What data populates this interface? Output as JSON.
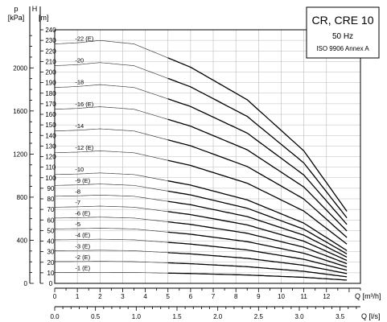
{
  "chart_data": {
    "type": "line",
    "title": "CR, CRE 10",
    "subtitle_freq": "50 Hz",
    "subtitle_standard": "ISO 9906 Annex A",
    "legend_position": "top-right",
    "grid": true,
    "x_axis": {
      "label": "Q [m³/h]",
      "min": 0,
      "max": 13.5,
      "ticks": [
        "0",
        "1",
        "2",
        "3",
        "4",
        "5",
        "6",
        "7",
        "8",
        "9",
        "10",
        "11",
        "12"
      ]
    },
    "x2_axis": {
      "label": "Q [l/s]",
      "min": 0,
      "max": 3.75,
      "ticks": [
        "0.0",
        "0.5",
        "1.0",
        "1.5",
        "2.0",
        "2.5",
        "3.0",
        "3.5"
      ]
    },
    "y_axis": {
      "label_top": "H",
      "unit": "[m]",
      "min": 0,
      "max": 240,
      "ticks": [
        "0",
        "10",
        "20",
        "30",
        "40",
        "50",
        "60",
        "70",
        "80",
        "90",
        "100",
        "110",
        "120",
        "130",
        "140",
        "150",
        "160",
        "170",
        "180",
        "190",
        "200",
        "210",
        "220",
        "230",
        "240"
      ]
    },
    "y2_axis": {
      "label_top": "p",
      "unit": "[kPa]",
      "min": 0,
      "max": 2353.6,
      "ticks": [
        "0",
        "400",
        "800",
        "1200",
        "1600",
        "2000"
      ]
    },
    "head_per_stage": [
      10.3,
      10.35,
      10.45,
      10.3,
      9.3,
      7.9,
      5.7,
      3.1
    ],
    "head_x": [
      0,
      1,
      2,
      3.5,
      6,
      8.5,
      11,
      12.9
    ],
    "series": [
      {
        "name": "-22 (E)",
        "stages": 22
      },
      {
        "name": "-20",
        "stages": 20
      },
      {
        "name": "-18",
        "stages": 18
      },
      {
        "name": "-16 (E)",
        "stages": 16
      },
      {
        "name": "-14",
        "stages": 14
      },
      {
        "name": "-12 (E)",
        "stages": 12
      },
      {
        "name": "-10",
        "stages": 10
      },
      {
        "name": "-9 (E)",
        "stages": 9
      },
      {
        "name": "-8",
        "stages": 8
      },
      {
        "name": "-7",
        "stages": 7
      },
      {
        "name": "-6 (E)",
        "stages": 6
      },
      {
        "name": "-5",
        "stages": 5
      },
      {
        "name": "-4 (E)",
        "stages": 4
      },
      {
        "name": "-3 (E)",
        "stages": 3
      },
      {
        "name": "-2 (E)",
        "stages": 2
      },
      {
        "name": "-1 (E)",
        "stages": 1
      }
    ]
  }
}
